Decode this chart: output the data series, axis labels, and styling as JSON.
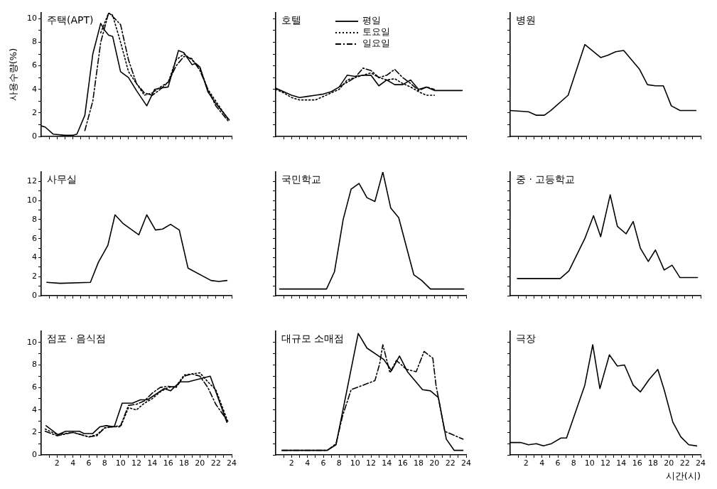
{
  "chart_data": [
    {
      "type": "line",
      "title": "주택(APT)",
      "ylabel": "사용수량(%)",
      "tick_labels": "y",
      "xlim": [
        0,
        24
      ],
      "ylim": [
        0,
        10.5
      ],
      "xticks": [
        {
          "value": 1,
          "label": null
        },
        2,
        {
          "value": 3,
          "label": null
        },
        4,
        {
          "value": 5,
          "label": null
        },
        6,
        {
          "value": 7,
          "label": null
        },
        8,
        {
          "value": 9,
          "label": null
        },
        10,
        {
          "value": 11,
          "label": null
        },
        12,
        {
          "value": 13,
          "label": null
        },
        14,
        {
          "value": 15,
          "label": null
        },
        16,
        {
          "value": 17,
          "label": null
        },
        18,
        {
          "value": 19,
          "label": null
        },
        20,
        {
          "value": 21,
          "label": null
        },
        22,
        {
          "value": 23,
          "label": null
        },
        24
      ],
      "yticks": [
        0,
        {
          "value": 1,
          "label": null
        },
        2,
        {
          "value": 3,
          "label": null
        },
        4,
        {
          "value": 5,
          "label": null
        },
        6,
        {
          "value": 7,
          "label": null
        },
        8,
        {
          "value": 9,
          "label": null
        },
        10
      ],
      "series": [
        {
          "color": "#000000",
          "line_style": "solid",
          "x": [
            0,
            0.5,
            1.5,
            3,
            4,
            4.5,
            5.5,
            6.5,
            7.5,
            8,
            8.5,
            9,
            10,
            11,
            12,
            13.3,
            14.3,
            15,
            16,
            17.3,
            18,
            19,
            19.5,
            20,
            21,
            22,
            23.7
          ],
          "values": [
            0.9,
            0.8,
            0.2,
            0.1,
            0.1,
            0.2,
            1.8,
            7,
            9.6,
            9.0,
            8.6,
            8.5,
            5.5,
            5.0,
            3.9,
            2.6,
            4.0,
            4.1,
            4.2,
            7.3,
            7.1,
            6.1,
            6.2,
            5.9,
            3.8,
            2.8,
            1.4
          ]
        },
        {
          "color": "#000000",
          "line_style": "dotted",
          "x": [
            7.5,
            8.5,
            9,
            10,
            11,
            12,
            13,
            14,
            15,
            16,
            17,
            18,
            19,
            20,
            21,
            22,
            23.5
          ],
          "values": [
            8.8,
            10.5,
            10.3,
            8,
            5.5,
            4.5,
            3.5,
            3.7,
            4.2,
            4.6,
            6.5,
            7.0,
            6.5,
            5.8,
            4.0,
            3.0,
            1.5
          ]
        },
        {
          "color": "#000000",
          "line_style": "dashed",
          "x": [
            5.5,
            6.5,
            7.5,
            8.5,
            9,
            10,
            11,
            12,
            13,
            14,
            15,
            16,
            17,
            18,
            19,
            20,
            21,
            22,
            23.7
          ],
          "values": [
            0.5,
            3,
            8,
            10.5,
            10.2,
            9.5,
            6.5,
            4.5,
            3.7,
            3.5,
            4.0,
            4.6,
            6.0,
            6.8,
            6.6,
            5.6,
            4.0,
            2.6,
            1.2
          ]
        }
      ]
    },
    {
      "type": "line",
      "title": "호텔",
      "tick_labels": false,
      "legend": "top",
      "xlim": [
        0,
        24
      ],
      "ylim": [
        0,
        10.5
      ],
      "xticks": [
        {
          "value": 1,
          "label": null
        },
        2,
        {
          "value": 3,
          "label": null
        },
        4,
        {
          "value": 5,
          "label": null
        },
        6,
        {
          "value": 7,
          "label": null
        },
        8,
        {
          "value": 9,
          "label": null
        },
        10,
        {
          "value": 11,
          "label": null
        },
        12,
        {
          "value": 13,
          "label": null
        },
        14,
        {
          "value": 15,
          "label": null
        },
        16,
        {
          "value": 17,
          "label": null
        },
        18,
        {
          "value": 19,
          "label": null
        },
        20,
        {
          "value": 21,
          "label": null
        },
        22,
        {
          "value": 23,
          "label": null
        },
        24
      ],
      "yticks": [
        0,
        {
          "value": 1,
          "label": null
        },
        2,
        {
          "value": 3,
          "label": null
        },
        4,
        {
          "value": 5,
          "label": null
        },
        6,
        {
          "value": 7,
          "label": null
        },
        8,
        {
          "value": 9,
          "label": null
        },
        10
      ],
      "series": [
        {
          "name": "평일",
          "color": "#000000",
          "line_style": "solid",
          "x": [
            0,
            1,
            2,
            3,
            4,
            5,
            6,
            7,
            8,
            9,
            10,
            11,
            12,
            13,
            14,
            15,
            16,
            17,
            18,
            19,
            20,
            21,
            22,
            23.5
          ],
          "values": [
            4.1,
            3.8,
            3.5,
            3.3,
            3.4,
            3.5,
            3.6,
            3.8,
            4.2,
            5.2,
            5.1,
            5.2,
            5.2,
            4.3,
            4.8,
            4.4,
            4.4,
            4.8,
            4.0,
            4.2,
            3.9,
            3.9,
            3.9,
            3.9
          ]
        },
        {
          "name": "토요일",
          "color": "#000000",
          "line_style": "dotted",
          "x": [
            0,
            1,
            2,
            3,
            4,
            5,
            6,
            7,
            8,
            9,
            10,
            11,
            12,
            13,
            14,
            15,
            16,
            17,
            18,
            19,
            20
          ],
          "values": [
            4.0,
            3.7,
            3.3,
            3.1,
            3.1,
            3.1,
            3.4,
            3.7,
            4.0,
            4.8,
            5.0,
            5.2,
            5.4,
            5.0,
            4.8,
            4.9,
            4.5,
            4.2,
            3.8,
            3.5,
            3.5
          ]
        },
        {
          "name": "일요일",
          "color": "#000000",
          "line_style": "dashed",
          "x": [
            8,
            9,
            10,
            11,
            12,
            13,
            14,
            15,
            16,
            17,
            18,
            19,
            20
          ],
          "values": [
            4.2,
            4.6,
            5.0,
            5.8,
            5.6,
            5.0,
            5.2,
            5.7,
            5.0,
            4.5,
            3.9,
            4.2,
            4.0
          ]
        }
      ]
    },
    {
      "type": "line",
      "title": "병원",
      "tick_labels": false,
      "xlim": [
        0,
        24
      ],
      "ylim": [
        0,
        10.5
      ],
      "xticks": [
        {
          "value": 1,
          "label": null
        },
        2,
        {
          "value": 3,
          "label": null
        },
        4,
        {
          "value": 5,
          "label": null
        },
        6,
        {
          "value": 7,
          "label": null
        },
        8,
        {
          "value": 9,
          "label": null
        },
        10,
        {
          "value": 11,
          "label": null
        },
        12,
        {
          "value": 13,
          "label": null
        },
        14,
        {
          "value": 15,
          "label": null
        },
        16,
        {
          "value": 17,
          "label": null
        },
        18,
        {
          "value": 19,
          "label": null
        },
        20,
        {
          "value": 21,
          "label": null
        },
        22,
        {
          "value": 23,
          "label": null
        },
        24
      ],
      "yticks": [
        0,
        {
          "value": 1,
          "label": null
        },
        2,
        {
          "value": 3,
          "label": null
        },
        4,
        {
          "value": 5,
          "label": null
        },
        6,
        {
          "value": 7,
          "label": null
        },
        8,
        {
          "value": 9,
          "label": null
        },
        10
      ],
      "series": [
        {
          "color": "#000000",
          "line_style": "solid",
          "x": [
            0,
            2.3,
            3.3,
            4.3,
            5.1,
            7.3,
            9.4,
            11.4,
            12.3,
            13.3,
            14.3,
            16.3,
            17.3,
            18.3,
            19.3,
            20.3,
            21.4,
            23.4
          ],
          "values": [
            2.2,
            2.1,
            1.8,
            1.8,
            2.2,
            3.5,
            7.8,
            6.7,
            6.9,
            7.2,
            7.3,
            5.7,
            4.4,
            4.3,
            4.3,
            2.6,
            2.2,
            2.2
          ]
        }
      ]
    },
    {
      "type": "line",
      "title": "사무실",
      "tick_labels": "y",
      "xlim": [
        0,
        24
      ],
      "ylim": [
        0,
        13
      ],
      "xticks": [
        {
          "value": 1,
          "label": null
        },
        2,
        {
          "value": 3,
          "label": null
        },
        4,
        {
          "value": 5,
          "label": null
        },
        6,
        {
          "value": 7,
          "label": null
        },
        8,
        {
          "value": 9,
          "label": null
        },
        10,
        {
          "value": 11,
          "label": null
        },
        12,
        {
          "value": 13,
          "label": null
        },
        14,
        {
          "value": 15,
          "label": null
        },
        16,
        {
          "value": 17,
          "label": null
        },
        18,
        {
          "value": 19,
          "label": null
        },
        20,
        {
          "value": 21,
          "label": null
        },
        22,
        {
          "value": 23,
          "label": null
        },
        24
      ],
      "yticks": [
        0,
        {
          "value": 1,
          "label": null
        },
        2,
        {
          "value": 3,
          "label": null
        },
        4,
        {
          "value": 5,
          "label": null
        },
        6,
        {
          "value": 7,
          "label": null
        },
        8,
        {
          "value": 9,
          "label": null
        },
        10,
        {
          "value": 11,
          "label": null
        },
        12
      ],
      "series": [
        {
          "color": "#000000",
          "line_style": "solid",
          "x": [
            0.7,
            2.4,
            6.2,
            7.2,
            8.4,
            9.3,
            10.3,
            12.3,
            13.3,
            14.4,
            15.3,
            16.3,
            17.4,
            18.5,
            21.4,
            22.4,
            23.4
          ],
          "values": [
            1.4,
            1.3,
            1.4,
            3.5,
            5.3,
            8.5,
            7.6,
            6.4,
            8.5,
            6.9,
            7.0,
            7.5,
            6.9,
            2.9,
            1.6,
            1.5,
            1.6
          ]
        }
      ]
    },
    {
      "type": "line",
      "title": "국민학교",
      "tick_labels": false,
      "xlim": [
        0,
        24
      ],
      "ylim": [
        0,
        13
      ],
      "xticks": [
        {
          "value": 1,
          "label": null
        },
        2,
        {
          "value": 3,
          "label": null
        },
        4,
        {
          "value": 5,
          "label": null
        },
        6,
        {
          "value": 7,
          "label": null
        },
        8,
        {
          "value": 9,
          "label": null
        },
        10,
        {
          "value": 11,
          "label": null
        },
        12,
        {
          "value": 13,
          "label": null
        },
        14,
        {
          "value": 15,
          "label": null
        },
        16,
        {
          "value": 17,
          "label": null
        },
        18,
        {
          "value": 19,
          "label": null
        },
        20,
        {
          "value": 21,
          "label": null
        },
        22,
        {
          "value": 23,
          "label": null
        },
        24
      ],
      "yticks": [
        0,
        {
          "value": 1,
          "label": null
        },
        2,
        {
          "value": 3,
          "label": null
        },
        4,
        {
          "value": 5,
          "label": null
        },
        6,
        {
          "value": 7,
          "label": null
        },
        8,
        {
          "value": 9,
          "label": null
        },
        10,
        {
          "value": 11,
          "label": null
        },
        12
      ],
      "series": [
        {
          "color": "#000000",
          "line_style": "solid",
          "x": [
            0.5,
            6.4,
            7.4,
            8.5,
            9.5,
            10.5,
            11.5,
            12.5,
            13.5,
            14.5,
            15.5,
            17.4,
            18.4,
            19.5,
            23.7
          ],
          "values": [
            0.7,
            0.7,
            2.5,
            8.0,
            11.2,
            11.8,
            10.3,
            9.9,
            13.0,
            9.2,
            8.2,
            2.2,
            1.6,
            0.7,
            0.7
          ]
        }
      ]
    },
    {
      "type": "line",
      "title": "중 · 고등학교",
      "tick_labels": false,
      "xlim": [
        0,
        24
      ],
      "ylim": [
        0,
        13
      ],
      "xticks": [
        {
          "value": 1,
          "label": null
        },
        2,
        {
          "value": 3,
          "label": null
        },
        4,
        {
          "value": 5,
          "label": null
        },
        6,
        {
          "value": 7,
          "label": null
        },
        8,
        {
          "value": 9,
          "label": null
        },
        10,
        {
          "value": 11,
          "label": null
        },
        12,
        {
          "value": 13,
          "label": null
        },
        14,
        {
          "value": 15,
          "label": null
        },
        16,
        {
          "value": 17,
          "label": null
        },
        18,
        {
          "value": 19,
          "label": null
        },
        20,
        {
          "value": 21,
          "label": null
        },
        22,
        {
          "value": 23,
          "label": null
        },
        24
      ],
      "yticks": [
        0,
        {
          "value": 1,
          "label": null
        },
        2,
        {
          "value": 3,
          "label": null
        },
        4,
        {
          "value": 5,
          "label": null
        },
        6,
        {
          "value": 7,
          "label": null
        },
        8,
        {
          "value": 9,
          "label": null
        },
        10,
        {
          "value": 11,
          "label": null
        },
        12
      ],
      "series": [
        {
          "color": "#000000",
          "line_style": "solid",
          "x": [
            0.9,
            6.3,
            7.4,
            9.4,
            10.5,
            11.4,
            12.6,
            13.5,
            14.6,
            15.5,
            16.4,
            17.4,
            18.3,
            19.4,
            20.4,
            21.4,
            23.6
          ],
          "values": [
            1.8,
            1.8,
            2.6,
            6.0,
            8.4,
            6.2,
            10.6,
            7.3,
            6.5,
            7.8,
            5.0,
            3.6,
            4.8,
            2.7,
            3.2,
            1.9,
            1.9
          ]
        }
      ]
    },
    {
      "type": "line",
      "title": "점포 · 음식점",
      "xlim": [
        0,
        24
      ],
      "ylim": [
        0,
        11
      ],
      "xticks": [
        {
          "value": 1,
          "label": null
        },
        2,
        {
          "value": 3,
          "label": null
        },
        4,
        {
          "value": 5,
          "label": null
        },
        6,
        {
          "value": 7,
          "label": null
        },
        8,
        {
          "value": 9,
          "label": null
        },
        10,
        {
          "value": 11,
          "label": null
        },
        12,
        {
          "value": 13,
          "label": null
        },
        14,
        {
          "value": 15,
          "label": null
        },
        16,
        {
          "value": 17,
          "label": null
        },
        18,
        {
          "value": 19,
          "label": null
        },
        20,
        {
          "value": 21,
          "label": null
        },
        22,
        {
          "value": 23,
          "label": null
        },
        24
      ],
      "yticks": [
        0,
        {
          "value": 1,
          "label": null
        },
        2,
        {
          "value": 3,
          "label": null
        },
        4,
        {
          "value": 5,
          "label": null
        },
        6,
        {
          "value": 7,
          "label": null
        },
        8,
        {
          "value": 9,
          "label": null
        },
        10
      ],
      "series": [
        {
          "color": "#000000",
          "line_style": "solid",
          "x": [
            0.6,
            2.1,
            3.1,
            4.8,
            5.4,
            6.5,
            7.4,
            8.2,
            9.2,
            10.2,
            11.5,
            12.5,
            13.4,
            15.5,
            16.3,
            17.5,
            18.5,
            21.3,
            23.4
          ],
          "values": [
            2.6,
            1.8,
            2.1,
            2.1,
            1.9,
            1.9,
            2.5,
            2.6,
            2.5,
            4.6,
            4.6,
            4.9,
            4.9,
            5.9,
            5.7,
            6.5,
            6.5,
            7.0,
            2.9
          ]
        },
        {
          "color": "#000000",
          "line_style": "dotted",
          "x": [
            0.5,
            2,
            4,
            6,
            7,
            8,
            9,
            10,
            11,
            12,
            13,
            14,
            15,
            16,
            17,
            18,
            19,
            20,
            21,
            22,
            23.5
          ],
          "values": [
            2.3,
            1.8,
            2.0,
            1.6,
            1.8,
            2.4,
            2.5,
            2.5,
            4.2,
            4.0,
            4.6,
            5.0,
            5.6,
            6.0,
            6.1,
            7.1,
            7.2,
            7.3,
            6.5,
            5.8,
            3.0
          ]
        },
        {
          "color": "#000000",
          "line_style": "dashed",
          "x": [
            0.5,
            2,
            4,
            6,
            7,
            8,
            9,
            10,
            11,
            12,
            13,
            14,
            15,
            16,
            17,
            18,
            19,
            20,
            21,
            22,
            23.5
          ],
          "values": [
            2.1,
            1.7,
            2.0,
            1.6,
            1.7,
            2.4,
            2.5,
            2.6,
            4.4,
            4.5,
            4.8,
            5.5,
            6.0,
            6.1,
            6.0,
            7.0,
            7.2,
            7.0,
            6.0,
            4.5,
            3.0
          ]
        }
      ]
    },
    {
      "type": "line",
      "title": "대규모 소매점",
      "tick_labels": "x",
      "xlim": [
        0,
        24
      ],
      "ylim": [
        0,
        11
      ],
      "xticks": [
        {
          "value": 1,
          "label": null
        },
        2,
        {
          "value": 3,
          "label": null
        },
        4,
        {
          "value": 5,
          "label": null
        },
        6,
        {
          "value": 7,
          "label": null
        },
        8,
        {
          "value": 9,
          "label": null
        },
        10,
        {
          "value": 11,
          "label": null
        },
        12,
        {
          "value": 13,
          "label": null
        },
        14,
        {
          "value": 15,
          "label": null
        },
        16,
        {
          "value": 17,
          "label": null
        },
        18,
        {
          "value": 19,
          "label": null
        },
        20,
        {
          "value": 21,
          "label": null
        },
        22,
        {
          "value": 23,
          "label": null
        },
        24
      ],
      "yticks": [
        0,
        {
          "value": 1,
          "label": null
        },
        2,
        {
          "value": 3,
          "label": null
        },
        4,
        {
          "value": 5,
          "label": null
        },
        6,
        {
          "value": 7,
          "label": null
        },
        8,
        {
          "value": 9,
          "label": null
        },
        10
      ],
      "series": [
        {
          "color": "#000000",
          "line_style": "solid",
          "x": [
            0.8,
            6.5,
            7.6,
            10.4,
            11.5,
            13.6,
            14.6,
            15.6,
            16.6,
            18.5,
            19.5,
            20.5,
            21.5,
            22.5,
            23.6
          ],
          "values": [
            0.4,
            0.4,
            0.9,
            10.8,
            9.5,
            8.5,
            7.5,
            8.8,
            7.4,
            5.8,
            5.7,
            5.1,
            1.4,
            0.4,
            0.4
          ]
        },
        {
          "color": "#000000",
          "line_style": "dashed",
          "x": [
            0.8,
            6.5,
            7.6,
            8.4,
            9.5,
            12.5,
            13.1,
            13.5,
            14.4,
            15.2,
            16.5,
            17.7,
            18.7,
            19.8,
            20.2,
            21.3,
            23.6
          ],
          "values": [
            0.4,
            0.4,
            1.0,
            3.4,
            5.8,
            6.6,
            8.1,
            9.8,
            7.3,
            8.4,
            7.6,
            7.4,
            9.2,
            8.6,
            6.2,
            2.1,
            1.4
          ]
        }
      ]
    },
    {
      "type": "line",
      "title": "극장",
      "xlabel": "시간(시)",
      "tick_labels": "x",
      "xlim": [
        0,
        24
      ],
      "ylim": [
        0,
        11
      ],
      "xticks": [
        {
          "value": 1,
          "label": null
        },
        2,
        {
          "value": 3,
          "label": null
        },
        4,
        {
          "value": 5,
          "label": null
        },
        6,
        {
          "value": 7,
          "label": null
        },
        8,
        {
          "value": 9,
          "label": null
        },
        10,
        {
          "value": 11,
          "label": null
        },
        12,
        {
          "value": 13,
          "label": null
        },
        14,
        {
          "value": 15,
          "label": null
        },
        16,
        {
          "value": 17,
          "label": null
        },
        18,
        {
          "value": 19,
          "label": null
        },
        20,
        {
          "value": 21,
          "label": null
        },
        22,
        {
          "value": 23,
          "label": null
        },
        24
      ],
      "yticks": [
        0,
        {
          "value": 1,
          "label": null
        },
        2,
        {
          "value": 3,
          "label": null
        },
        4,
        {
          "value": 5,
          "label": null
        },
        6,
        {
          "value": 7,
          "label": null
        },
        8,
        {
          "value": 9,
          "label": null
        },
        10
      ],
      "series": [
        {
          "color": "#000000",
          "line_style": "solid",
          "x": [
            0,
            1.3,
            2.3,
            3.3,
            4.2,
            5.2,
            6.4,
            7.1,
            9.4,
            10.4,
            11.3,
            12.5,
            13.5,
            14.4,
            15.5,
            16.4,
            17.5,
            18.6,
            19.4,
            20.5,
            21.5,
            22.5,
            23.5
          ],
          "values": [
            1.1,
            1.1,
            0.9,
            1.0,
            0.8,
            1.0,
            1.5,
            1.5,
            6.2,
            9.8,
            5.9,
            8.9,
            7.9,
            8.0,
            6.2,
            5.6,
            6.7,
            7.6,
            5.8,
            2.9,
            1.6,
            0.9,
            0.8
          ]
        }
      ]
    }
  ]
}
